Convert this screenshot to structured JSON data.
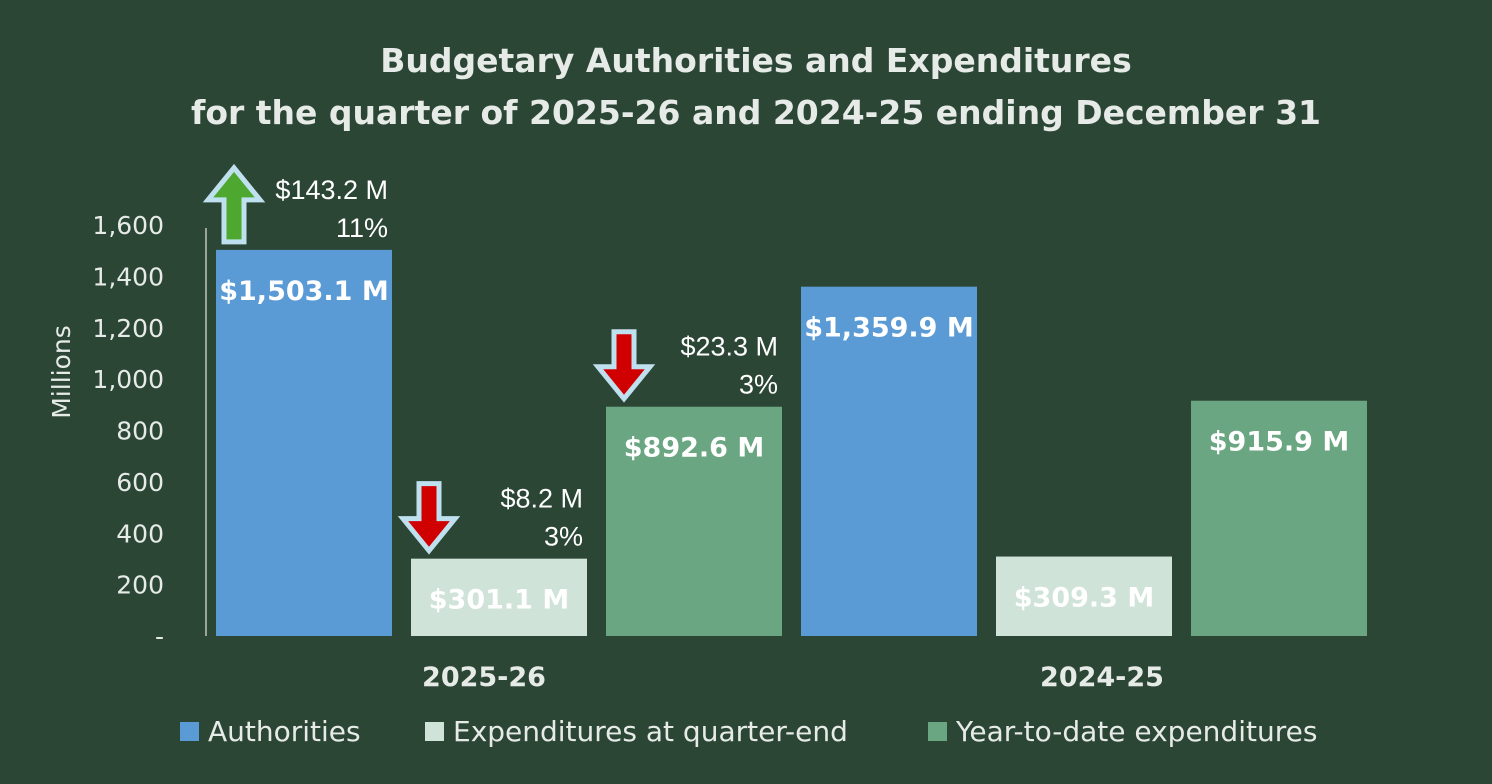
{
  "chart_data": {
    "type": "bar",
    "title": "Budgetary Authorities and Expenditures",
    "subtitle": "for the quarter of 2025-26 and 2024-25 ending December 31",
    "ylabel": "Millions",
    "ylim": [
      0,
      1600
    ],
    "yticks": [
      "-",
      "200",
      "400",
      "600",
      "800",
      "1,000",
      "1,200",
      "1,400",
      "1,600"
    ],
    "categories": [
      "2025-26",
      "2024-25"
    ],
    "legend_position": "bottom",
    "grid": false,
    "series": [
      {
        "name": "Authorities",
        "color": "#5b9bd5",
        "values": [
          1503.1,
          1359.9
        ],
        "labels": [
          "$1,503.1 M",
          "$1,359.9 M"
        ]
      },
      {
        "name": "Expenditures at quarter-end",
        "color": "#d0e3d8",
        "values": [
          301.1,
          309.3
        ],
        "labels": [
          "$301.1 M",
          "$309.3 M"
        ]
      },
      {
        "name": "Year-to-date expenditures",
        "color": "#6aa681",
        "values": [
          892.6,
          915.9
        ],
        "labels": [
          "$892.6 M",
          "$915.9 M"
        ]
      }
    ],
    "annotations": [
      {
        "series": 0,
        "direction": "up",
        "amount": "$143.2 M",
        "percent": "11%",
        "color": "#4ea72e"
      },
      {
        "series": 1,
        "direction": "down",
        "amount": "$8.2 M",
        "percent": "3%",
        "color": "#d00000"
      },
      {
        "series": 2,
        "direction": "down",
        "amount": "$23.3 M",
        "percent": "3%",
        "color": "#d00000"
      }
    ]
  }
}
